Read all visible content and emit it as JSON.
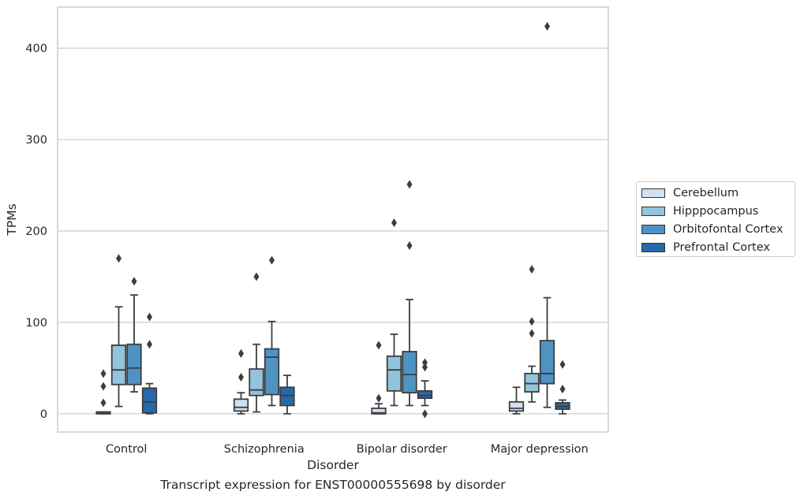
{
  "caption": "Transcript expression for ENST00000555698 by disorder",
  "chart_data": {
    "type": "box",
    "title": "",
    "xlabel": "Disorder",
    "ylabel": "TPMs",
    "ylim": [
      -20,
      445
    ],
    "yticks": [
      0,
      100,
      200,
      300,
      400
    ],
    "grid": "horizontal",
    "legend_position": "right",
    "categories": [
      "Control",
      "Schizophrenia",
      "Bipolar disorder",
      "Major depression"
    ],
    "series": [
      {
        "name": "Cerebellum",
        "color": "#cfe1f2",
        "boxes": [
          {
            "whislo": 0,
            "q1": 0,
            "med": 0.5,
            "q3": 2,
            "whishi": 2,
            "fliers": [
              12,
              30,
              44
            ]
          },
          {
            "whislo": 0,
            "q1": 3,
            "med": 7,
            "q3": 16,
            "whishi": 23,
            "fliers": [
              40,
              66
            ]
          },
          {
            "whislo": 0,
            "q1": 0,
            "med": 1,
            "q3": 6,
            "whishi": 11,
            "fliers": [
              17,
              75
            ]
          },
          {
            "whislo": 0,
            "q1": 3,
            "med": 6,
            "q3": 13,
            "whishi": 29,
            "fliers": []
          }
        ]
      },
      {
        "name": "Hipppocampus",
        "color": "#93c4de",
        "boxes": [
          {
            "whislo": 8,
            "q1": 32,
            "med": 48,
            "q3": 75,
            "whishi": 117,
            "fliers": [
              170
            ]
          },
          {
            "whislo": 2,
            "q1": 20,
            "med": 26,
            "q3": 49,
            "whishi": 76,
            "fliers": [
              150
            ]
          },
          {
            "whislo": 9,
            "q1": 25,
            "med": 48,
            "q3": 63,
            "whishi": 87,
            "fliers": [
              209
            ]
          },
          {
            "whislo": 13,
            "q1": 24,
            "med": 33,
            "q3": 44,
            "whishi": 52,
            "fliers": [
              88,
              101,
              158
            ]
          }
        ]
      },
      {
        "name": "Orbitofontal Cortex",
        "color": "#4f93c2",
        "boxes": [
          {
            "whislo": 24,
            "q1": 32,
            "med": 50,
            "q3": 76,
            "whishi": 130,
            "fliers": [
              145
            ]
          },
          {
            "whislo": 9,
            "q1": 21,
            "med": 62,
            "q3": 71,
            "whishi": 101,
            "fliers": [
              168
            ]
          },
          {
            "whislo": 9,
            "q1": 23,
            "med": 43,
            "q3": 68,
            "whishi": 125,
            "fliers": [
              184,
              251
            ]
          },
          {
            "whislo": 7,
            "q1": 33,
            "med": 44,
            "q3": 80,
            "whishi": 127,
            "fliers": [
              424
            ]
          }
        ]
      },
      {
        "name": "Prefrontal Cortex",
        "color": "#2868a8",
        "boxes": [
          {
            "whislo": 0,
            "q1": 1,
            "med": 13,
            "q3": 28,
            "whishi": 33,
            "fliers": [
              76,
              106
            ]
          },
          {
            "whislo": 0,
            "q1": 9,
            "med": 20,
            "q3": 29,
            "whishi": 42,
            "fliers": []
          },
          {
            "whislo": 9,
            "q1": 17,
            "med": 20,
            "q3": 25,
            "whishi": 36,
            "fliers": [
              0,
              51,
              56
            ]
          },
          {
            "whislo": 0,
            "q1": 5,
            "med": 8,
            "q3": 12,
            "whishi": 15,
            "fliers": [
              27,
              54
            ]
          }
        ]
      }
    ]
  }
}
